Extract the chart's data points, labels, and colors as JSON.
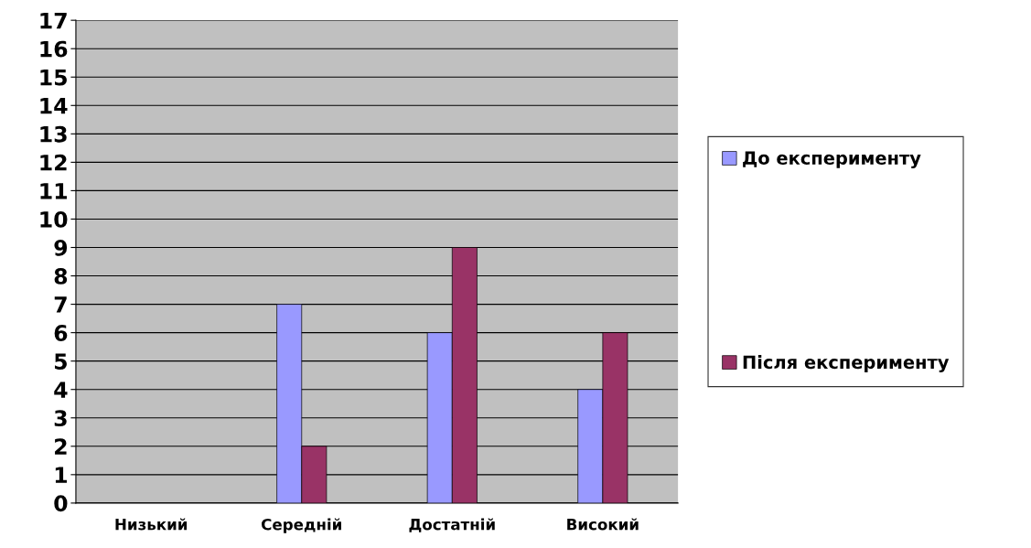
{
  "chart_data": {
    "type": "bar",
    "categories": [
      "Низький",
      "Середній",
      "Достатній",
      "Високий"
    ],
    "series": [
      {
        "name": "До експерименту",
        "color": "#9999ff",
        "values": [
          0,
          7,
          6,
          4
        ]
      },
      {
        "name": "Після експерименту",
        "color": "#993366",
        "values": [
          0,
          2,
          9,
          6
        ]
      }
    ],
    "ylim": [
      0,
      17
    ],
    "yticks": [
      0,
      1,
      2,
      3,
      4,
      5,
      6,
      7,
      8,
      9,
      10,
      11,
      12,
      13,
      14,
      15,
      16,
      17
    ],
    "grid": "y",
    "legend": "right"
  }
}
